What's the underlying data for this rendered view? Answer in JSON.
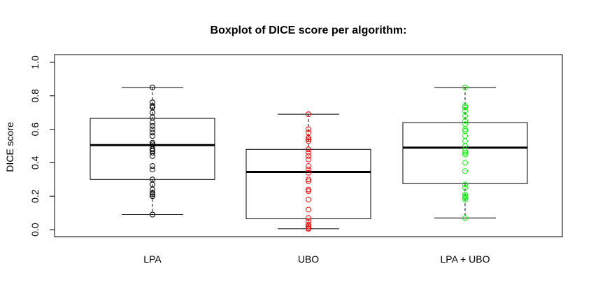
{
  "chart_data": {
    "type": "boxplot",
    "title": "Boxplot of DICE score per algorithm:",
    "xlabel": "",
    "ylabel": "DICE score",
    "ylim": [
      0.0,
      1.0
    ],
    "yticks": [
      "0.0",
      "0.2",
      "0.4",
      "0.6",
      "0.8",
      "1.0"
    ],
    "grid": false,
    "categories": [
      "LPA",
      "UBO",
      "LPA + UBO"
    ],
    "series": [
      {
        "category": "LPA",
        "color": "#000000",
        "min": 0.09,
        "q1": 0.3,
        "median": 0.505,
        "q3": 0.665,
        "max": 0.85,
        "points": [
          0.85,
          0.76,
          0.74,
          0.73,
          0.7,
          0.67,
          0.64,
          0.62,
          0.6,
          0.58,
          0.56,
          0.52,
          0.51,
          0.5,
          0.48,
          0.47,
          0.46,
          0.44,
          0.38,
          0.36,
          0.3,
          0.27,
          0.24,
          0.22,
          0.21,
          0.2,
          0.09
        ]
      },
      {
        "category": "UBO",
        "color": "#ff0000",
        "min": 0.005,
        "q1": 0.065,
        "median": 0.345,
        "q3": 0.48,
        "max": 0.69,
        "points": [
          0.69,
          0.6,
          0.58,
          0.55,
          0.54,
          0.53,
          0.48,
          0.46,
          0.44,
          0.42,
          0.38,
          0.36,
          0.34,
          0.3,
          0.29,
          0.24,
          0.23,
          0.18,
          0.12,
          0.07,
          0.05,
          0.03,
          0.02,
          0.01,
          0.005
        ]
      },
      {
        "category": "LPA + UBO",
        "color": "#00ff00",
        "min": 0.07,
        "q1": 0.275,
        "median": 0.49,
        "q3": 0.64,
        "max": 0.85,
        "points": [
          0.85,
          0.74,
          0.73,
          0.71,
          0.68,
          0.65,
          0.63,
          0.6,
          0.59,
          0.56,
          0.53,
          0.5,
          0.47,
          0.46,
          0.45,
          0.4,
          0.35,
          0.27,
          0.25,
          0.21,
          0.2,
          0.19,
          0.18,
          0.07
        ]
      }
    ]
  }
}
